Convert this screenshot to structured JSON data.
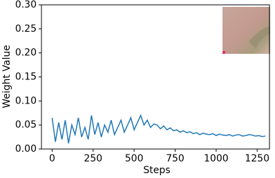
{
  "chart_data": {
    "type": "line",
    "x_label": "Steps",
    "y_label": "Weight Value",
    "x": [
      0,
      20,
      40,
      60,
      80,
      100,
      120,
      140,
      160,
      180,
      200,
      220,
      240,
      260,
      280,
      300,
      320,
      340,
      360,
      380,
      400,
      420,
      440,
      460,
      480,
      500,
      520,
      540,
      560,
      580,
      600,
      620,
      640,
      660,
      680,
      700,
      720,
      740,
      760,
      780,
      800,
      820,
      840,
      860,
      880,
      900,
      920,
      940,
      960,
      980,
      1000,
      1020,
      1040,
      1060,
      1080,
      1100,
      1120,
      1140,
      1160,
      1180,
      1200,
      1220,
      1240,
      1260,
      1280,
      1300
    ],
    "series": [
      {
        "color": "#1f77b4",
        "values": [
          0.065,
          0.015,
          0.055,
          0.02,
          0.06,
          0.012,
          0.05,
          0.03,
          0.065,
          0.025,
          0.045,
          0.02,
          0.07,
          0.03,
          0.055,
          0.025,
          0.05,
          0.035,
          0.06,
          0.03,
          0.045,
          0.06,
          0.035,
          0.05,
          0.065,
          0.04,
          0.055,
          0.07,
          0.05,
          0.06,
          0.045,
          0.052,
          0.05,
          0.042,
          0.048,
          0.04,
          0.044,
          0.038,
          0.04,
          0.035,
          0.038,
          0.034,
          0.036,
          0.032,
          0.034,
          0.03,
          0.033,
          0.031,
          0.03,
          0.032,
          0.028,
          0.031,
          0.029,
          0.028,
          0.03,
          0.027,
          0.029,
          0.03,
          0.027,
          0.028,
          0.03,
          0.029,
          0.027,
          0.028,
          0.026,
          0.027
        ]
      }
    ],
    "xlim": [
      -65,
      1325
    ],
    "ylim": [
      0,
      0.3
    ],
    "xticks": [
      0,
      250,
      500,
      750,
      1000,
      1250
    ],
    "yticks": [
      {
        "value": 0,
        "label": "0.00"
      },
      {
        "value": 0.05,
        "label": "0.05"
      },
      {
        "value": 0.1,
        "label": "0.10"
      },
      {
        "value": 0.15,
        "label": "0.15"
      },
      {
        "value": 0.2,
        "label": "0.20"
      },
      {
        "value": 0.25,
        "label": "0.25"
      },
      {
        "value": 0.3,
        "label": "0.30"
      }
    ]
  }
}
